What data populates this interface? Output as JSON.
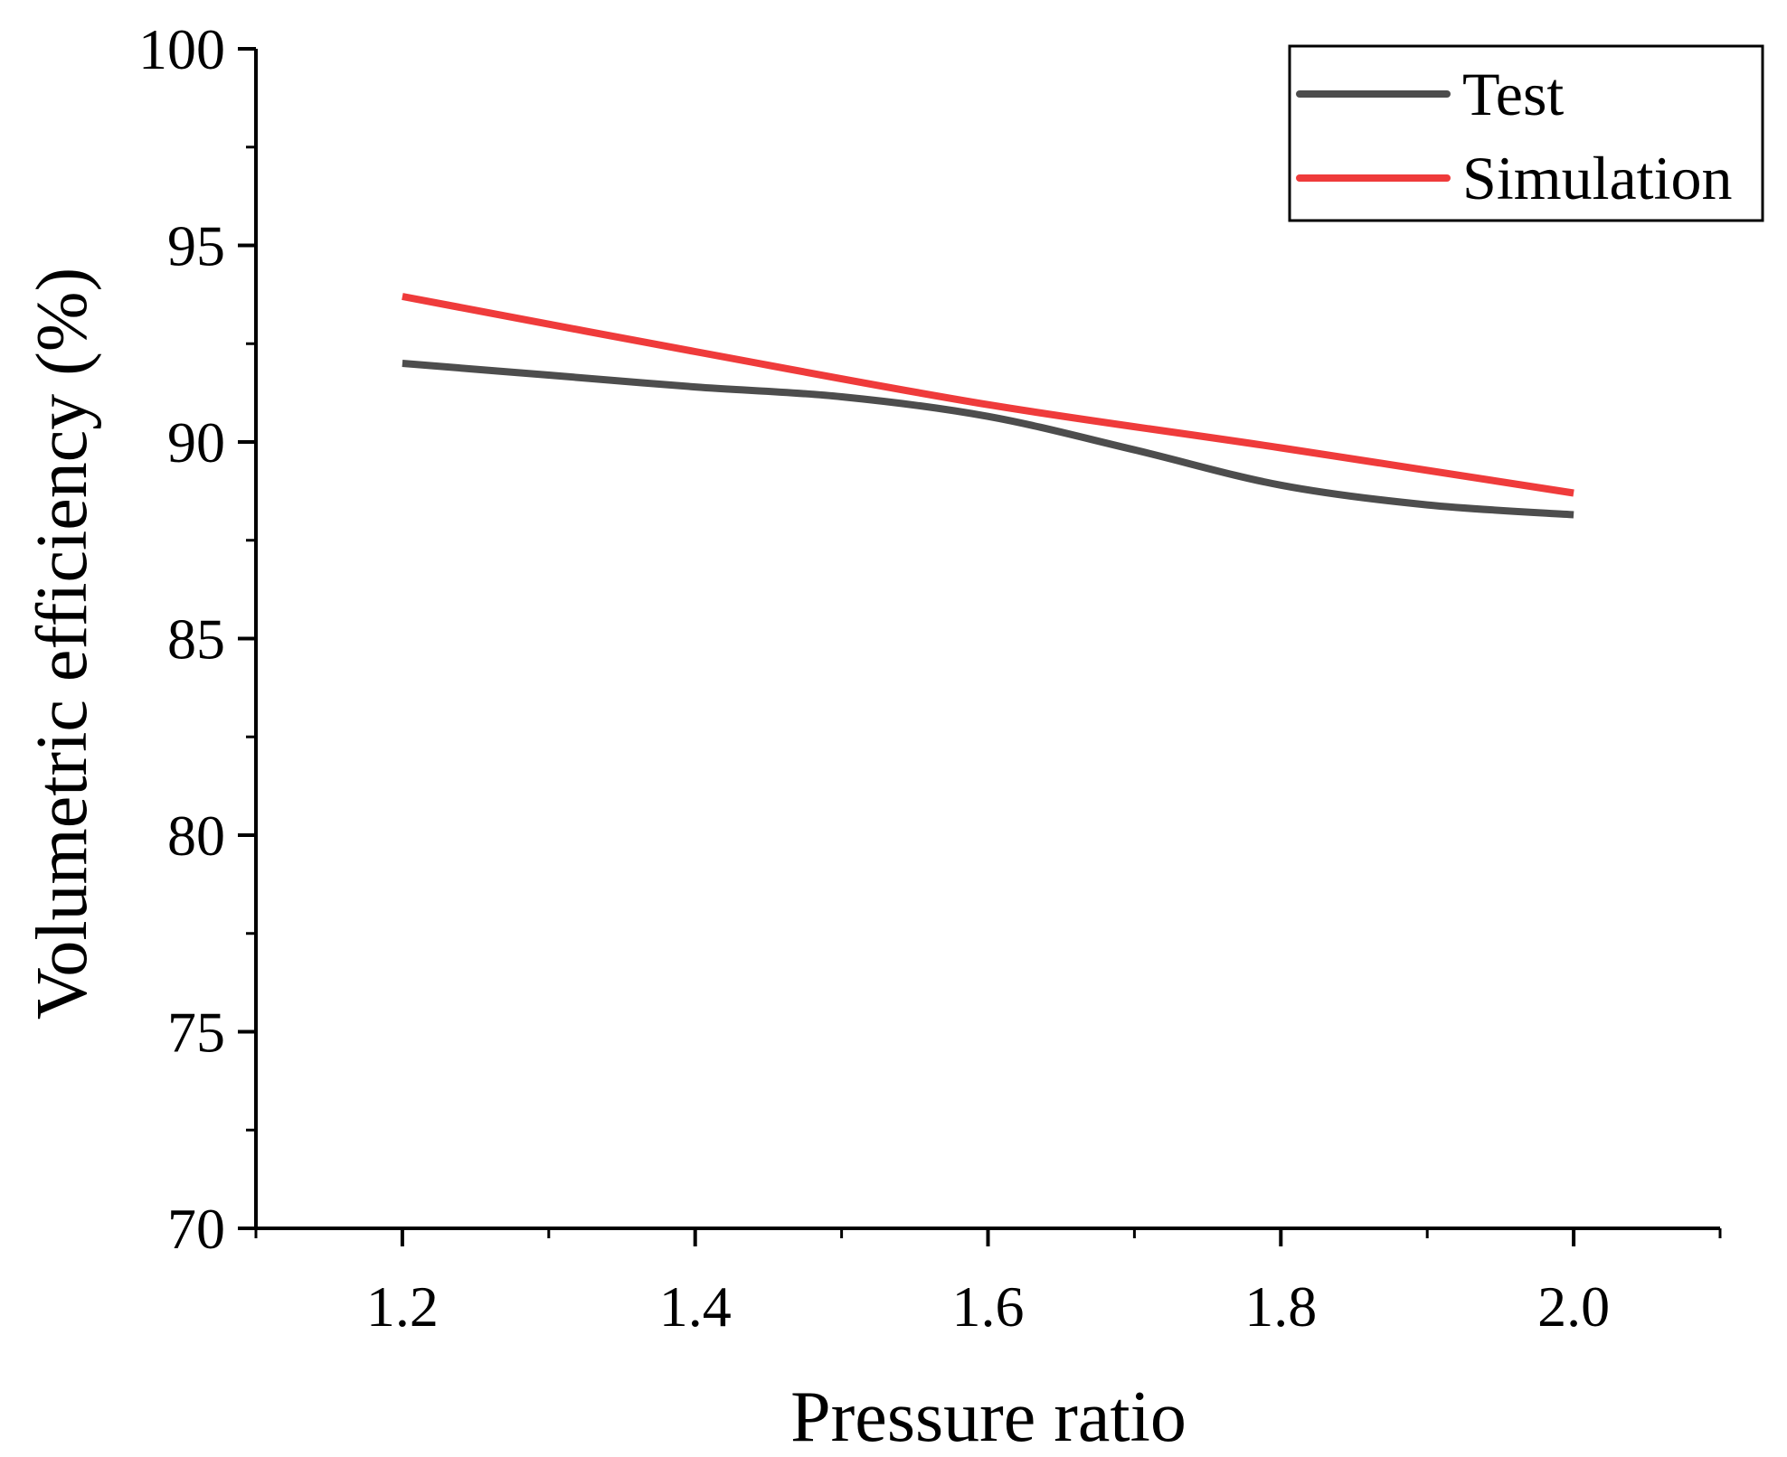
{
  "chart_data": {
    "type": "line",
    "title": "",
    "xlabel": "Pressure ratio",
    "ylabel": "Volumetric efficiency (%)",
    "xlim": [
      1.1,
      2.1
    ],
    "ylim": [
      70,
      100
    ],
    "x_ticks": [
      1.2,
      1.4,
      1.6,
      1.8,
      2.0
    ],
    "x_tick_labels": [
      "1.2",
      "1.4",
      "1.6",
      "1.8",
      "2.0"
    ],
    "x_minor_ticks": [
      1.1,
      1.3,
      1.5,
      1.7,
      1.9,
      2.1
    ],
    "y_ticks": [
      70,
      75,
      80,
      85,
      90,
      95,
      100
    ],
    "y_tick_labels": [
      "70",
      "75",
      "80",
      "85",
      "90",
      "95",
      "100"
    ],
    "y_minor_ticks": [
      72.5,
      77.5,
      82.5,
      87.5,
      92.5,
      97.5
    ],
    "grid": false,
    "legend_position": "top-right",
    "series": [
      {
        "name": "Test",
        "color": "#4d4d4d",
        "x": [
          1.2,
          1.3,
          1.4,
          1.5,
          1.6,
          1.7,
          1.8,
          1.9,
          2.0
        ],
        "values": [
          92.0,
          91.7,
          91.4,
          91.15,
          90.65,
          89.8,
          88.9,
          88.4,
          88.15
        ]
      },
      {
        "name": "Simulation",
        "color": "#ef3b3b",
        "x": [
          1.2,
          1.4,
          1.6,
          1.8,
          2.0
        ],
        "values": [
          93.7,
          92.3,
          90.95,
          89.85,
          88.7
        ]
      }
    ]
  }
}
